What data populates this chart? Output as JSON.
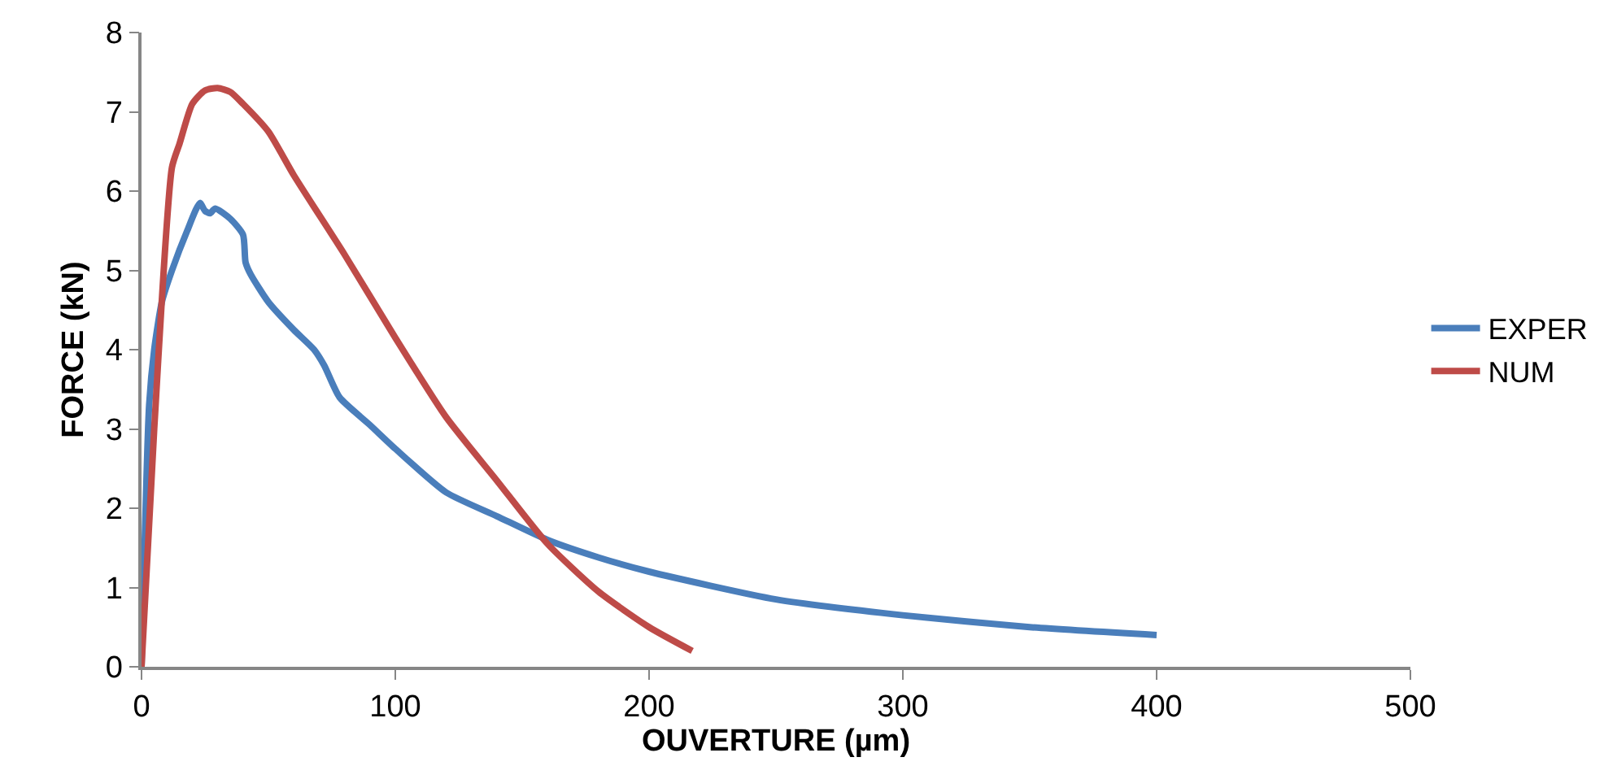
{
  "chart_data": {
    "type": "line",
    "xlabel": "OUVERTURE (µm)",
    "ylabel": "FORCE (kN)",
    "xlim": [
      0,
      500
    ],
    "xticks": [
      0,
      100,
      200,
      300,
      400,
      500
    ],
    "ylim": [
      0,
      8
    ],
    "yticks": [
      0,
      1,
      2,
      3,
      4,
      5,
      6,
      7,
      8
    ],
    "grid": false,
    "legend": "right",
    "marker": "none",
    "line_style": "solid",
    "series": [
      {
        "name": "EXPER",
        "color": "#4a7ebb",
        "x": [
          0,
          3,
          5,
          8,
          12,
          18,
          23,
          25,
          27,
          29,
          35,
          40,
          41,
          43,
          50,
          60,
          68,
          72,
          78,
          90,
          100,
          120,
          140,
          160,
          180,
          200,
          250,
          300,
          350,
          400
        ],
        "values": [
          0,
          3.3,
          4.0,
          4.6,
          5.0,
          5.5,
          5.85,
          5.75,
          5.72,
          5.78,
          5.65,
          5.45,
          5.1,
          4.95,
          4.6,
          4.25,
          4.0,
          3.8,
          3.4,
          3.05,
          2.75,
          2.2,
          1.9,
          1.6,
          1.38,
          1.2,
          0.85,
          0.65,
          0.5,
          0.4
        ]
      },
      {
        "name": "NUM",
        "color": "#be4b48",
        "x": [
          0,
          5,
          12,
          15,
          20,
          25,
          30,
          35,
          40,
          50,
          60,
          80,
          100,
          120,
          140,
          160,
          180,
          200,
          217
        ],
        "values": [
          0,
          3.0,
          6.3,
          6.6,
          7.1,
          7.27,
          7.3,
          7.25,
          7.1,
          6.75,
          6.2,
          5.2,
          4.15,
          3.15,
          2.35,
          1.55,
          0.95,
          0.5,
          0.2
        ]
      }
    ]
  }
}
